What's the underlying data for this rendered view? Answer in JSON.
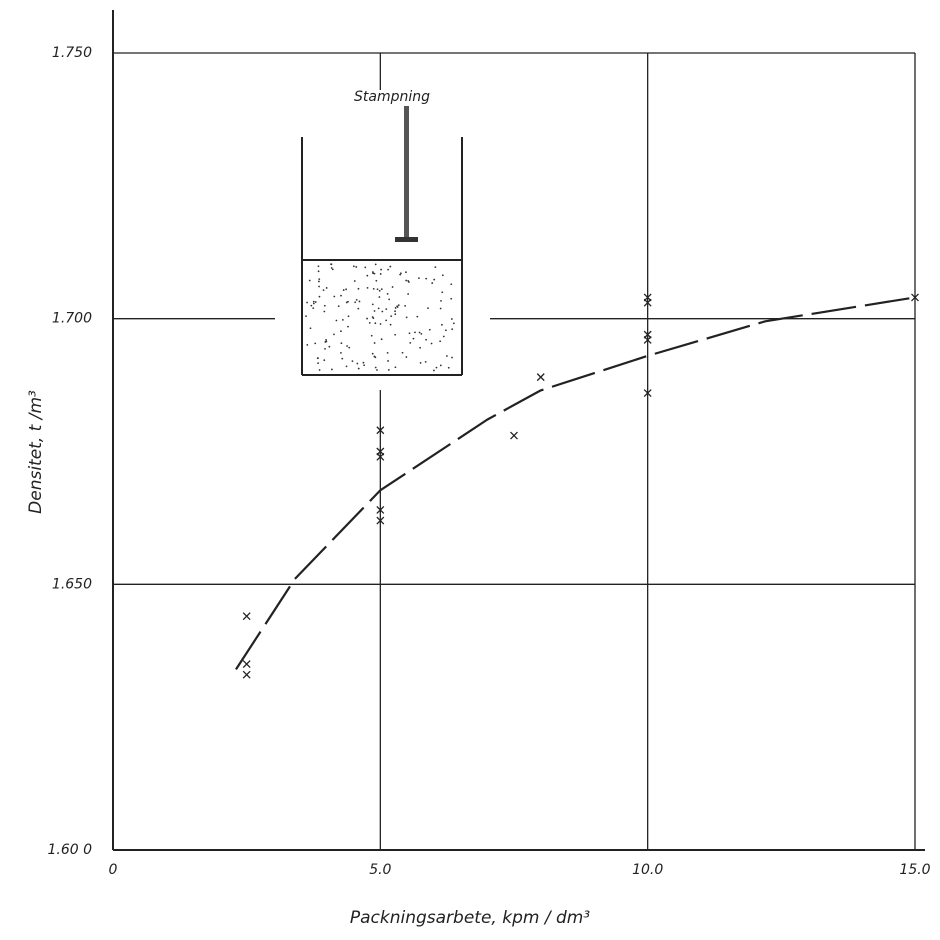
{
  "chart_data": {
    "type": "scatter",
    "annotation": "Stampning",
    "xlabel": "Packningsarbete, kpm / dm³",
    "ylabel": "Densitet, t /m³",
    "xlim": [
      0,
      15.0
    ],
    "ylim": [
      1.6,
      1.75
    ],
    "xticks": [
      0,
      {
        "value": 5,
        "label": "5.0"
      },
      {
        "value": 10,
        "label": "10.0"
      },
      {
        "value": 15,
        "label": "15.0"
      }
    ],
    "yticks": [
      {
        "value": 1.6,
        "label": "1.60 0"
      },
      {
        "value": 1.65,
        "label": "1.650"
      },
      {
        "value": 1.7,
        "label": "1.700"
      },
      {
        "value": 1.75,
        "label": "1.750"
      }
    ],
    "grid": true,
    "series": [
      {
        "type": "scatter",
        "color": "#222222",
        "x": [
          2.5,
          2.5,
          2.5,
          5,
          5,
          5,
          5,
          5,
          7.5,
          8,
          10,
          10,
          10,
          10,
          10,
          15
        ],
        "values": [
          1.644,
          1.635,
          1.633,
          1.679,
          1.675,
          1.674,
          1.664,
          1.662,
          1.678,
          1.689,
          1.704,
          1.703,
          1.697,
          1.696,
          1.686,
          1.704
        ]
      },
      {
        "type": "line",
        "color": "#222222",
        "x": [
          2.3,
          3.4,
          5,
          7,
          8,
          10,
          12.2,
          15
        ],
        "values": [
          1.634,
          1.651,
          1.6677,
          1.681,
          1.6865,
          1.693,
          1.6995,
          1.704
        ]
      }
    ]
  }
}
